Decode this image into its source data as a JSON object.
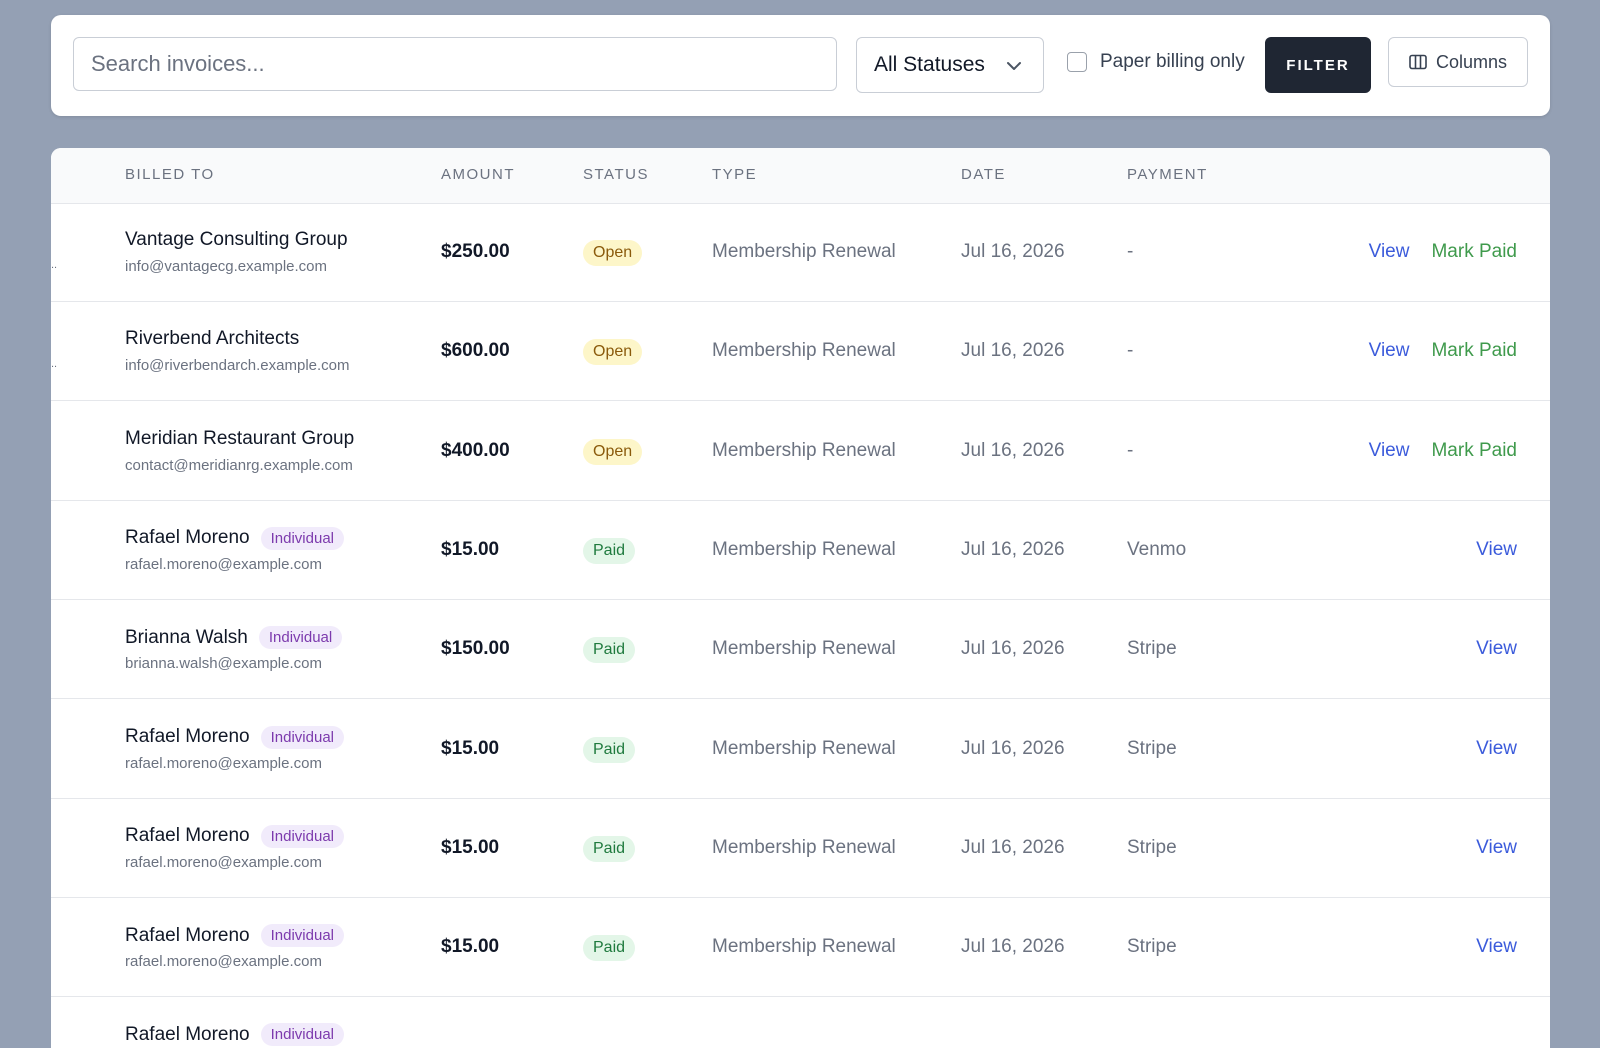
{
  "toolbar": {
    "search_placeholder": "Search invoices...",
    "status_select": "All Statuses",
    "paper_billing_label": "Paper billing only",
    "paper_billing_checked": false,
    "filter_label": "FILTER",
    "columns_label": "Columns"
  },
  "table": {
    "headers": [
      "BILLED TO",
      "AMOUNT",
      "STATUS",
      "TYPE",
      "DATE",
      "PAYMENT"
    ],
    "rows": [
      {
        "name": "Vantage Consulting Group",
        "tag": "",
        "email": "info@vantagecg.example.com",
        "amount": "$250.00",
        "status": "Open",
        "type": "Membership Renewal",
        "date": "Jul 16, 2026",
        "payment": "-",
        "view": "View",
        "mark_paid": "Mark Paid",
        "dots": ".."
      },
      {
        "name": "Riverbend Architects",
        "tag": "",
        "email": "info@riverbendarch.example.com",
        "amount": "$600.00",
        "status": "Open",
        "type": "Membership Renewal",
        "date": "Jul 16, 2026",
        "payment": "-",
        "view": "View",
        "mark_paid": "Mark Paid",
        "dots": ".."
      },
      {
        "name": "Meridian Restaurant Group",
        "tag": "",
        "email": "contact@meridianrg.example.com",
        "amount": "$400.00",
        "status": "Open",
        "type": "Membership Renewal",
        "date": "Jul 16, 2026",
        "payment": "-",
        "view": "View",
        "mark_paid": "Mark Paid",
        "dots": ""
      },
      {
        "name": "Rafael Moreno",
        "tag": "Individual",
        "email": "rafael.moreno@example.com",
        "amount": "$15.00",
        "status": "Paid",
        "type": "Membership Renewal",
        "date": "Jul 16, 2026",
        "payment": "Venmo",
        "view": "View",
        "mark_paid": "",
        "dots": ""
      },
      {
        "name": "Brianna Walsh",
        "tag": "Individual",
        "email": "brianna.walsh@example.com",
        "amount": "$150.00",
        "status": "Paid",
        "type": "Membership Renewal",
        "date": "Jul 16, 2026",
        "payment": "Stripe",
        "view": "View",
        "mark_paid": "",
        "dots": ""
      },
      {
        "name": "Rafael Moreno",
        "tag": "Individual",
        "email": "rafael.moreno@example.com",
        "amount": "$15.00",
        "status": "Paid",
        "type": "Membership Renewal",
        "date": "Jul 16, 2026",
        "payment": "Stripe",
        "view": "View",
        "mark_paid": "",
        "dots": ""
      },
      {
        "name": "Rafael Moreno",
        "tag": "Individual",
        "email": "rafael.moreno@example.com",
        "amount": "$15.00",
        "status": "Paid",
        "type": "Membership Renewal",
        "date": "Jul 16, 2026",
        "payment": "Stripe",
        "view": "View",
        "mark_paid": "",
        "dots": ""
      },
      {
        "name": "Rafael Moreno",
        "tag": "Individual",
        "email": "rafael.moreno@example.com",
        "amount": "$15.00",
        "status": "Paid",
        "type": "Membership Renewal",
        "date": "Jul 16, 2026",
        "payment": "Stripe",
        "view": "View",
        "mark_paid": "",
        "dots": ""
      },
      {
        "name": "Rafael Moreno",
        "tag": "Individual",
        "email": "",
        "amount": "",
        "status": "",
        "type": "",
        "date": "",
        "payment": "",
        "view": "",
        "mark_paid": "",
        "dots": ""
      }
    ]
  },
  "colors": {
    "background": "#94a0b4",
    "filter_button": "#1f2633",
    "link_view": "#3b5bdb",
    "link_mark_paid": "#3f9a4c",
    "badge_open": "#fdf6c9",
    "badge_paid": "#e3f6e8",
    "tag_individual": "#f1ebfb"
  },
  "icons": {
    "status_select": "chevron-down-icon",
    "columns_button": "columns-icon"
  }
}
